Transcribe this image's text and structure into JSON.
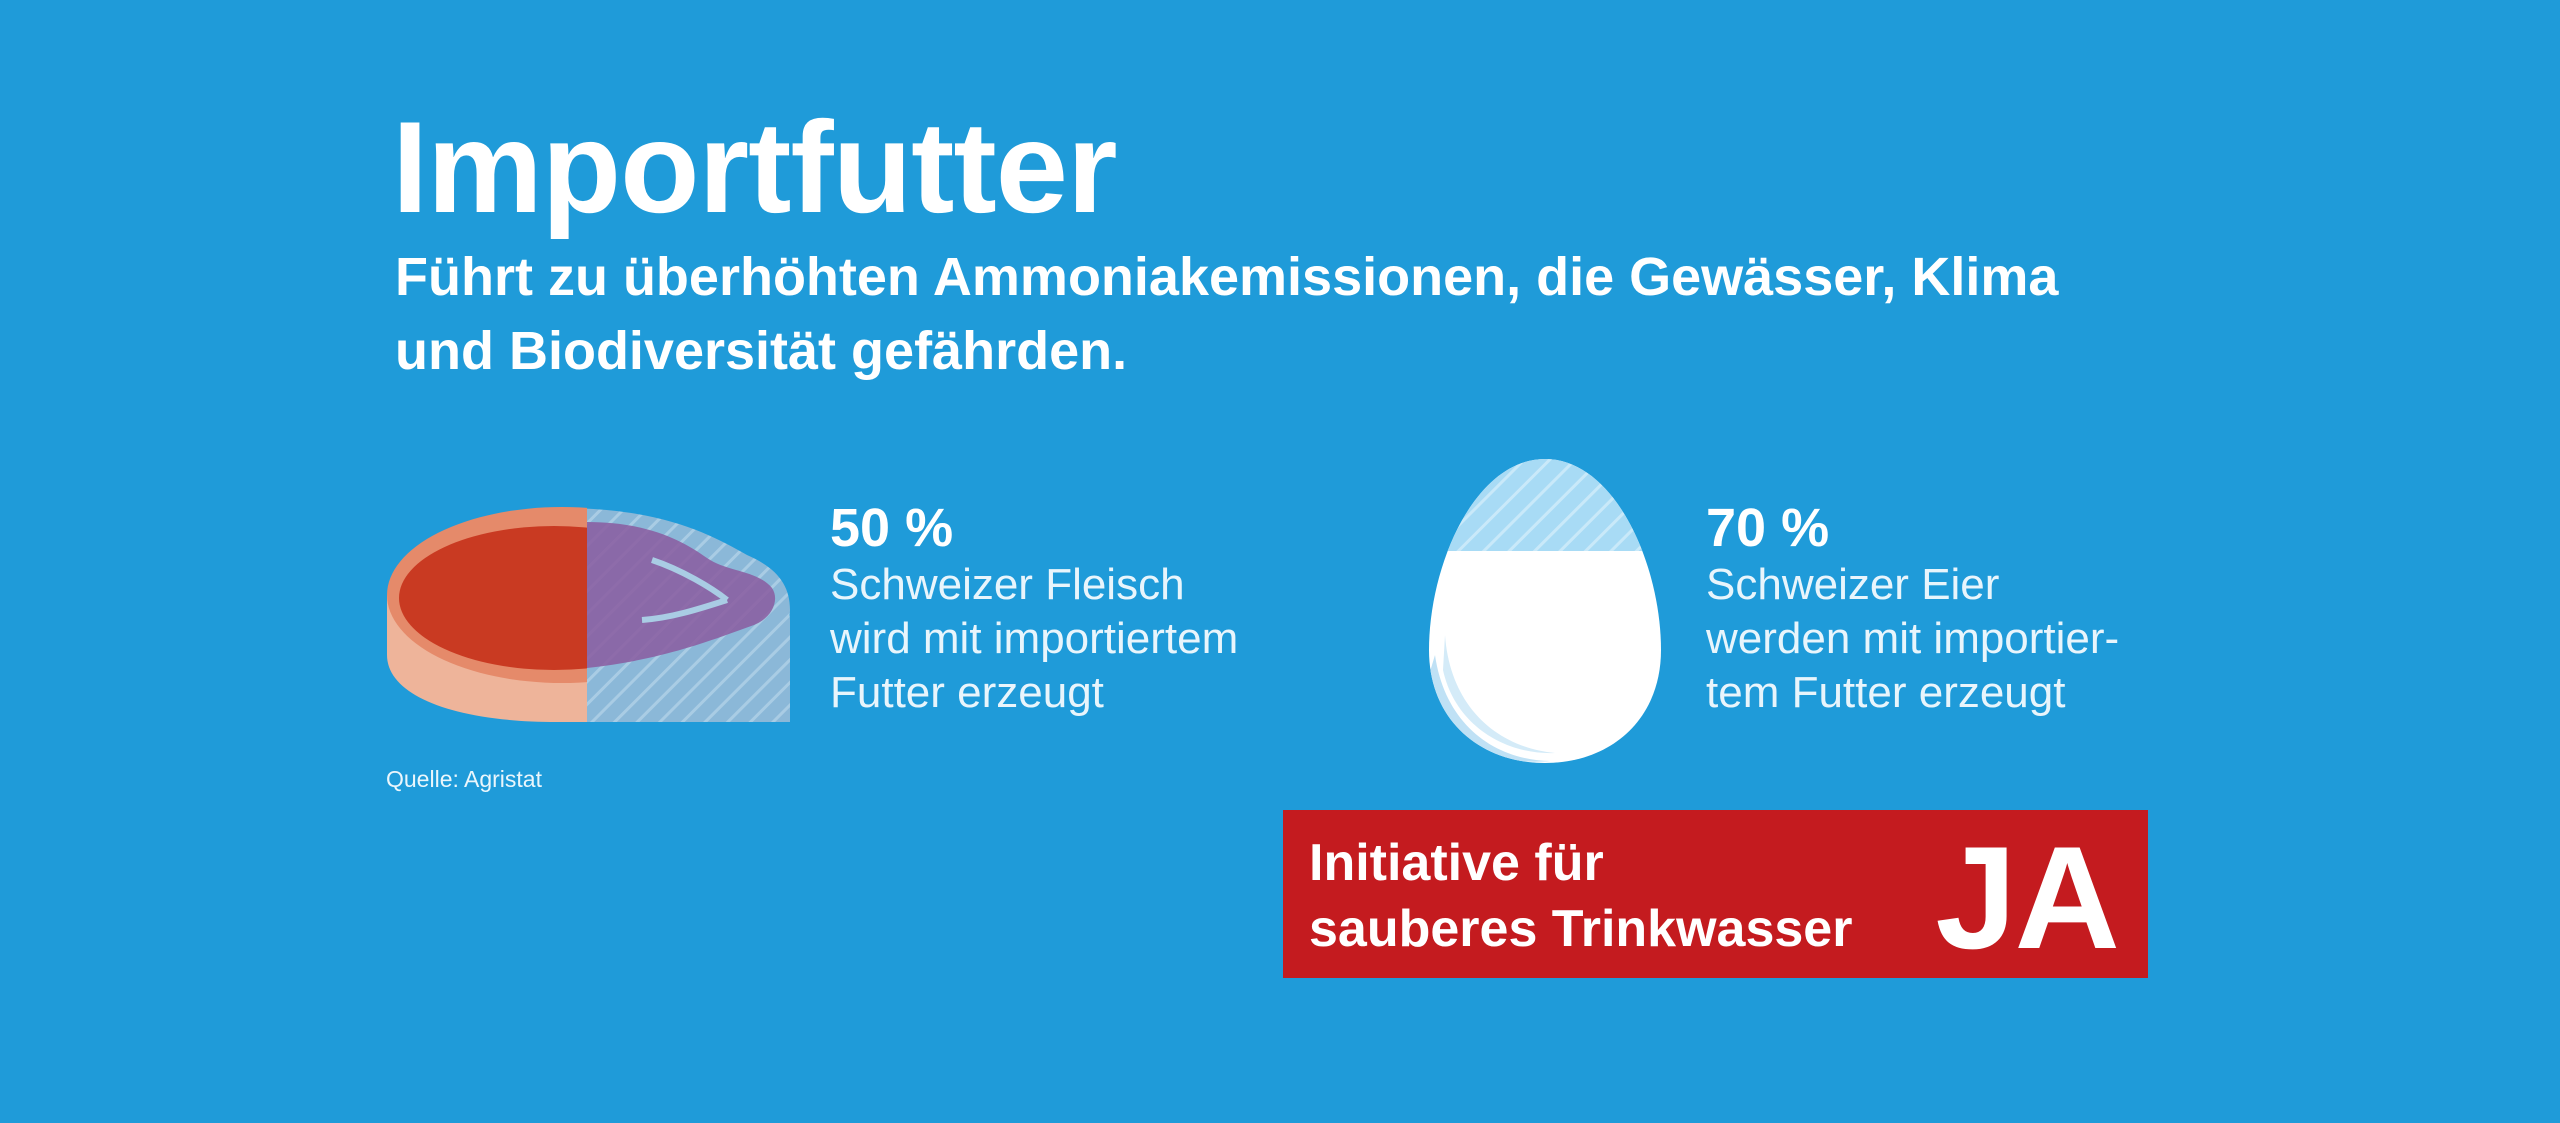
{
  "header": {
    "title": "Importfutter",
    "subtitle_lines": [
      "Führt zu überhöhten Ammoniakemissionen, die Gewässer, Klima",
      "und Biodiversität gefährden."
    ]
  },
  "stats": [
    {
      "icon": "steak-icon",
      "share": 0.5,
      "value": "50 %",
      "lines": [
        "Schweizer Fleisch",
        "wird mit importiertem",
        "Futter erzeugt"
      ]
    },
    {
      "icon": "egg-icon",
      "share": 0.7,
      "value": "70 %",
      "lines": [
        "Schweizer Eier",
        "werden mit importier-",
        "tem Futter erzeugt"
      ]
    }
  ],
  "source": "Quelle: Agristat",
  "banner": {
    "lines": [
      "Initiative für",
      "sauberes Trinkwasser"
    ],
    "vote": "JA"
  },
  "colors": {
    "background": "#1f9bd9",
    "meat": "#c93a22",
    "banner": "#c41b1f",
    "text": "#ffffff"
  }
}
